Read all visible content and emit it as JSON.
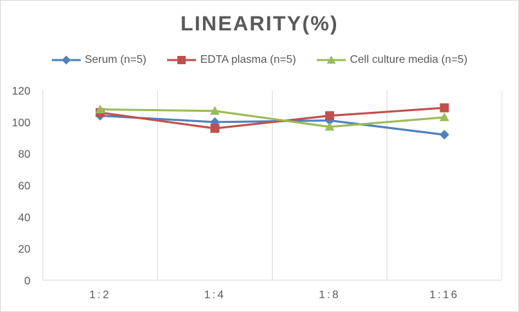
{
  "chart_data": {
    "type": "line",
    "title": "LINEARITY(%)",
    "categories": [
      "1:2",
      "1:4",
      "1:8",
      "1:16"
    ],
    "ylim": [
      0,
      120
    ],
    "yticks": [
      0,
      20,
      40,
      60,
      80,
      100,
      120
    ],
    "grid": "vertical",
    "legend_position": "top",
    "series": [
      {
        "name": "Serum (n=5)",
        "values": [
          104,
          100,
          101,
          92
        ],
        "color": "#4f81bd",
        "marker": "diamond"
      },
      {
        "name": "EDTA plasma (n=5)",
        "values": [
          106,
          96,
          104,
          109
        ],
        "color": "#c0504d",
        "marker": "square"
      },
      {
        "name": "Cell culture media (n=5)",
        "values": [
          108,
          107,
          97,
          103
        ],
        "color": "#9bbb59",
        "marker": "triangle"
      }
    ]
  }
}
